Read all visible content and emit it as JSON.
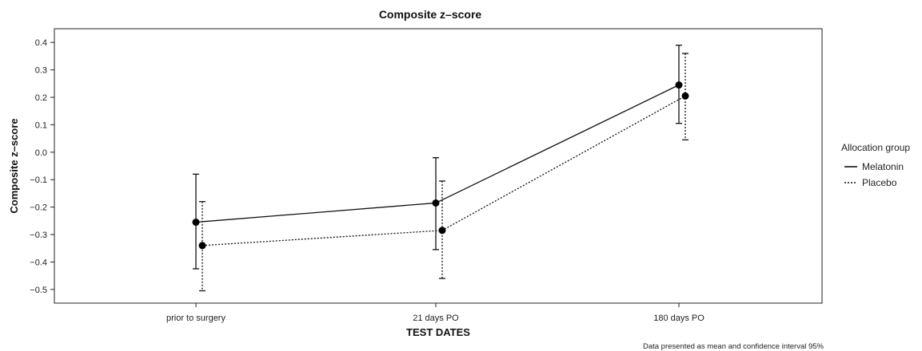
{
  "chart_data": {
    "type": "line",
    "title": "Composite z–score",
    "xlabel": "TEST DATES",
    "ylabel": "Composite z–score",
    "categories": [
      "prior to surgery",
      "21 days PO",
      "180 days PO"
    ],
    "ylim": [
      -0.55,
      0.45
    ],
    "yticks": [
      "0.4",
      "0.3",
      "0.2",
      "0.1",
      "0.0",
      "−0.1",
      "−0.2",
      "−0.3",
      "−0.4",
      "−0.5"
    ],
    "ytick_values": [
      0.4,
      0.3,
      0.2,
      0.1,
      0.0,
      -0.1,
      -0.2,
      -0.3,
      -0.4,
      -0.5
    ],
    "legend": {
      "title": "Allocation group",
      "position": "right"
    },
    "series": [
      {
        "name": "Melatonin",
        "style": "solid",
        "values": [
          -0.255,
          -0.185,
          0.245
        ],
        "ci_low": [
          -0.425,
          -0.355,
          0.105
        ],
        "ci_high": [
          -0.08,
          -0.02,
          0.39
        ]
      },
      {
        "name": "Placebo",
        "style": "dotted",
        "values": [
          -0.34,
          -0.285,
          0.205
        ],
        "ci_low": [
          -0.505,
          -0.46,
          0.045
        ],
        "ci_high": [
          -0.18,
          -0.105,
          0.36
        ]
      }
    ],
    "footnote": "Data presented as mean and confidence interval 95%"
  }
}
